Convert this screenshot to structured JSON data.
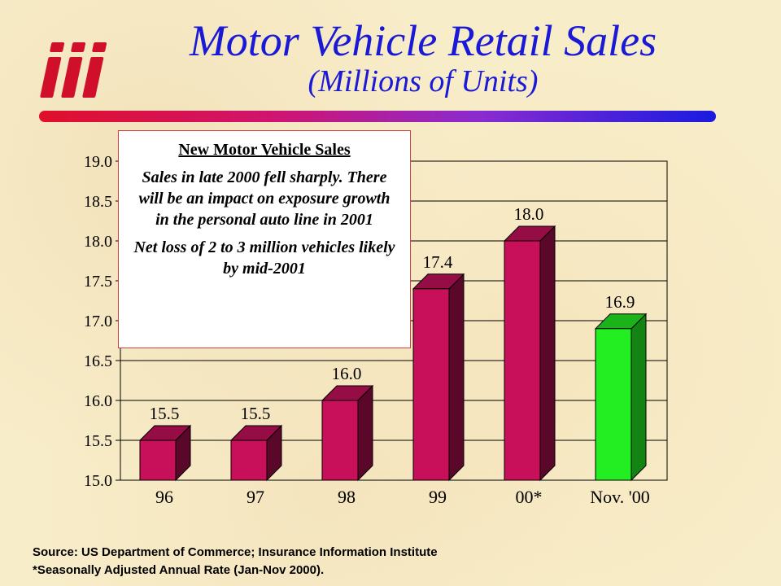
{
  "title": "Motor Vehicle Retail Sales",
  "subtitle": "(Millions of Units)",
  "logo_text": "iii",
  "callout": {
    "heading": "New Motor Vehicle Sales",
    "paragraph1": "Sales in late 2000 fell sharply. There will be an impact on exposure growth in the personal auto line in 2001",
    "paragraph2": "Net loss of 2 to 3 million vehicles likely by mid-2001"
  },
  "footnotes": {
    "source": "Source: US Department of Commerce; Insurance Information Institute",
    "note": "*Seasonally Adjusted Annual Rate (Jan-Nov 2000)."
  },
  "colors": {
    "bar_primary": "#c8105a",
    "bar_highlight": "#22ee22",
    "title": "#1a1ad6"
  },
  "chart_data": {
    "type": "bar",
    "categories": [
      "96",
      "97",
      "98",
      "99",
      "00*",
      "Nov. '00"
    ],
    "values": [
      15.5,
      15.5,
      16.0,
      17.4,
      18.0,
      16.9
    ],
    "data_labels": [
      "15.5",
      "15.5",
      "16.0",
      "17.4",
      "18.0",
      "16.9"
    ],
    "highlight_index": 5,
    "ylim": [
      15.0,
      19.0
    ],
    "yticks": [
      "15.0",
      "15.5",
      "16.0",
      "16.5",
      "17.0",
      "17.5",
      "18.0",
      "18.5",
      "19.0"
    ],
    "grid": true,
    "bar_style": "3d"
  }
}
